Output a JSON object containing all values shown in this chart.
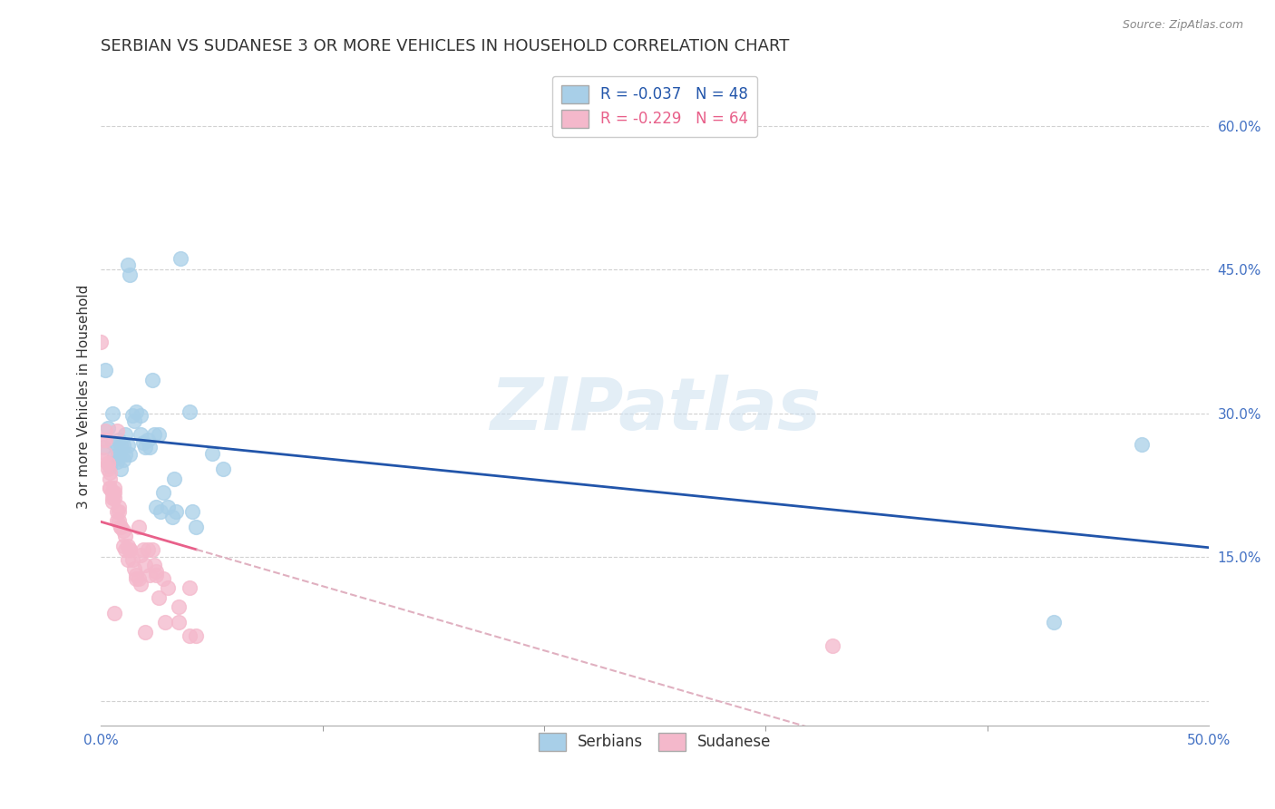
{
  "title": "SERBIAN VS SUDANESE 3 OR MORE VEHICLES IN HOUSEHOLD CORRELATION CHART",
  "source": "Source: ZipAtlas.com",
  "ylabel": "3 or more Vehicles in Household",
  "y_ticks": [
    0.0,
    0.15,
    0.3,
    0.45,
    0.6
  ],
  "y_tick_labels": [
    "",
    "15.0%",
    "30.0%",
    "45.0%",
    "60.0%"
  ],
  "x_range": [
    0.0,
    0.5
  ],
  "y_range": [
    -0.025,
    0.66
  ],
  "legend_serbian": "R = -0.037   N = 48",
  "legend_sudanese": "R = -0.229   N = 64",
  "serbian_color": "#a8cfe8",
  "sudanese_color": "#f4b8cb",
  "serbian_line_color": "#2255aa",
  "sudanese_line_color": "#e8608a",
  "sudanese_line_dashed_color": "#e0b0c0",
  "watermark": "ZIPatlas",
  "serbian_points": [
    [
      0.001,
      0.265
    ],
    [
      0.002,
      0.345
    ],
    [
      0.003,
      0.285
    ],
    [
      0.004,
      0.245
    ],
    [
      0.005,
      0.27
    ],
    [
      0.005,
      0.3
    ],
    [
      0.006,
      0.255
    ],
    [
      0.007,
      0.262
    ],
    [
      0.007,
      0.25
    ],
    [
      0.008,
      0.272
    ],
    [
      0.008,
      0.255
    ],
    [
      0.009,
      0.267
    ],
    [
      0.009,
      0.242
    ],
    [
      0.01,
      0.267
    ],
    [
      0.01,
      0.252
    ],
    [
      0.011,
      0.278
    ],
    [
      0.011,
      0.257
    ],
    [
      0.012,
      0.267
    ],
    [
      0.012,
      0.455
    ],
    [
      0.013,
      0.445
    ],
    [
      0.013,
      0.257
    ],
    [
      0.014,
      0.298
    ],
    [
      0.015,
      0.292
    ],
    [
      0.016,
      0.302
    ],
    [
      0.018,
      0.298
    ],
    [
      0.018,
      0.278
    ],
    [
      0.019,
      0.27
    ],
    [
      0.02,
      0.265
    ],
    [
      0.021,
      0.272
    ],
    [
      0.022,
      0.265
    ],
    [
      0.023,
      0.335
    ],
    [
      0.024,
      0.278
    ],
    [
      0.025,
      0.202
    ],
    [
      0.026,
      0.278
    ],
    [
      0.027,
      0.198
    ],
    [
      0.028,
      0.218
    ],
    [
      0.03,
      0.202
    ],
    [
      0.032,
      0.192
    ],
    [
      0.033,
      0.232
    ],
    [
      0.034,
      0.198
    ],
    [
      0.036,
      0.462
    ],
    [
      0.04,
      0.302
    ],
    [
      0.041,
      0.198
    ],
    [
      0.043,
      0.182
    ],
    [
      0.05,
      0.258
    ],
    [
      0.055,
      0.242
    ],
    [
      0.43,
      0.082
    ],
    [
      0.47,
      0.268
    ]
  ],
  "sudanese_points": [
    [
      0.0,
      0.375
    ],
    [
      0.001,
      0.252
    ],
    [
      0.001,
      0.272
    ],
    [
      0.002,
      0.258
    ],
    [
      0.002,
      0.272
    ],
    [
      0.002,
      0.282
    ],
    [
      0.003,
      0.242
    ],
    [
      0.003,
      0.248
    ],
    [
      0.003,
      0.248
    ],
    [
      0.004,
      0.222
    ],
    [
      0.004,
      0.232
    ],
    [
      0.004,
      0.238
    ],
    [
      0.004,
      0.222
    ],
    [
      0.005,
      0.212
    ],
    [
      0.005,
      0.218
    ],
    [
      0.005,
      0.218
    ],
    [
      0.005,
      0.208
    ],
    [
      0.006,
      0.218
    ],
    [
      0.006,
      0.222
    ],
    [
      0.006,
      0.212
    ],
    [
      0.007,
      0.198
    ],
    [
      0.007,
      0.188
    ],
    [
      0.007,
      0.282
    ],
    [
      0.008,
      0.188
    ],
    [
      0.008,
      0.198
    ],
    [
      0.008,
      0.202
    ],
    [
      0.009,
      0.182
    ],
    [
      0.009,
      0.182
    ],
    [
      0.01,
      0.162
    ],
    [
      0.01,
      0.178
    ],
    [
      0.011,
      0.172
    ],
    [
      0.011,
      0.158
    ],
    [
      0.012,
      0.162
    ],
    [
      0.012,
      0.148
    ],
    [
      0.013,
      0.158
    ],
    [
      0.013,
      0.158
    ],
    [
      0.014,
      0.148
    ],
    [
      0.015,
      0.138
    ],
    [
      0.016,
      0.128
    ],
    [
      0.016,
      0.132
    ],
    [
      0.017,
      0.128
    ],
    [
      0.017,
      0.182
    ],
    [
      0.018,
      0.152
    ],
    [
      0.018,
      0.122
    ],
    [
      0.019,
      0.158
    ],
    [
      0.02,
      0.142
    ],
    [
      0.021,
      0.158
    ],
    [
      0.022,
      0.132
    ],
    [
      0.023,
      0.158
    ],
    [
      0.024,
      0.142
    ],
    [
      0.025,
      0.132
    ],
    [
      0.025,
      0.135
    ],
    [
      0.026,
      0.108
    ],
    [
      0.028,
      0.128
    ],
    [
      0.029,
      0.082
    ],
    [
      0.03,
      0.118
    ],
    [
      0.035,
      0.098
    ],
    [
      0.035,
      0.082
    ],
    [
      0.04,
      0.118
    ],
    [
      0.04,
      0.068
    ],
    [
      0.043,
      0.068
    ],
    [
      0.33,
      0.058
    ],
    [
      0.006,
      0.092
    ],
    [
      0.02,
      0.072
    ]
  ]
}
